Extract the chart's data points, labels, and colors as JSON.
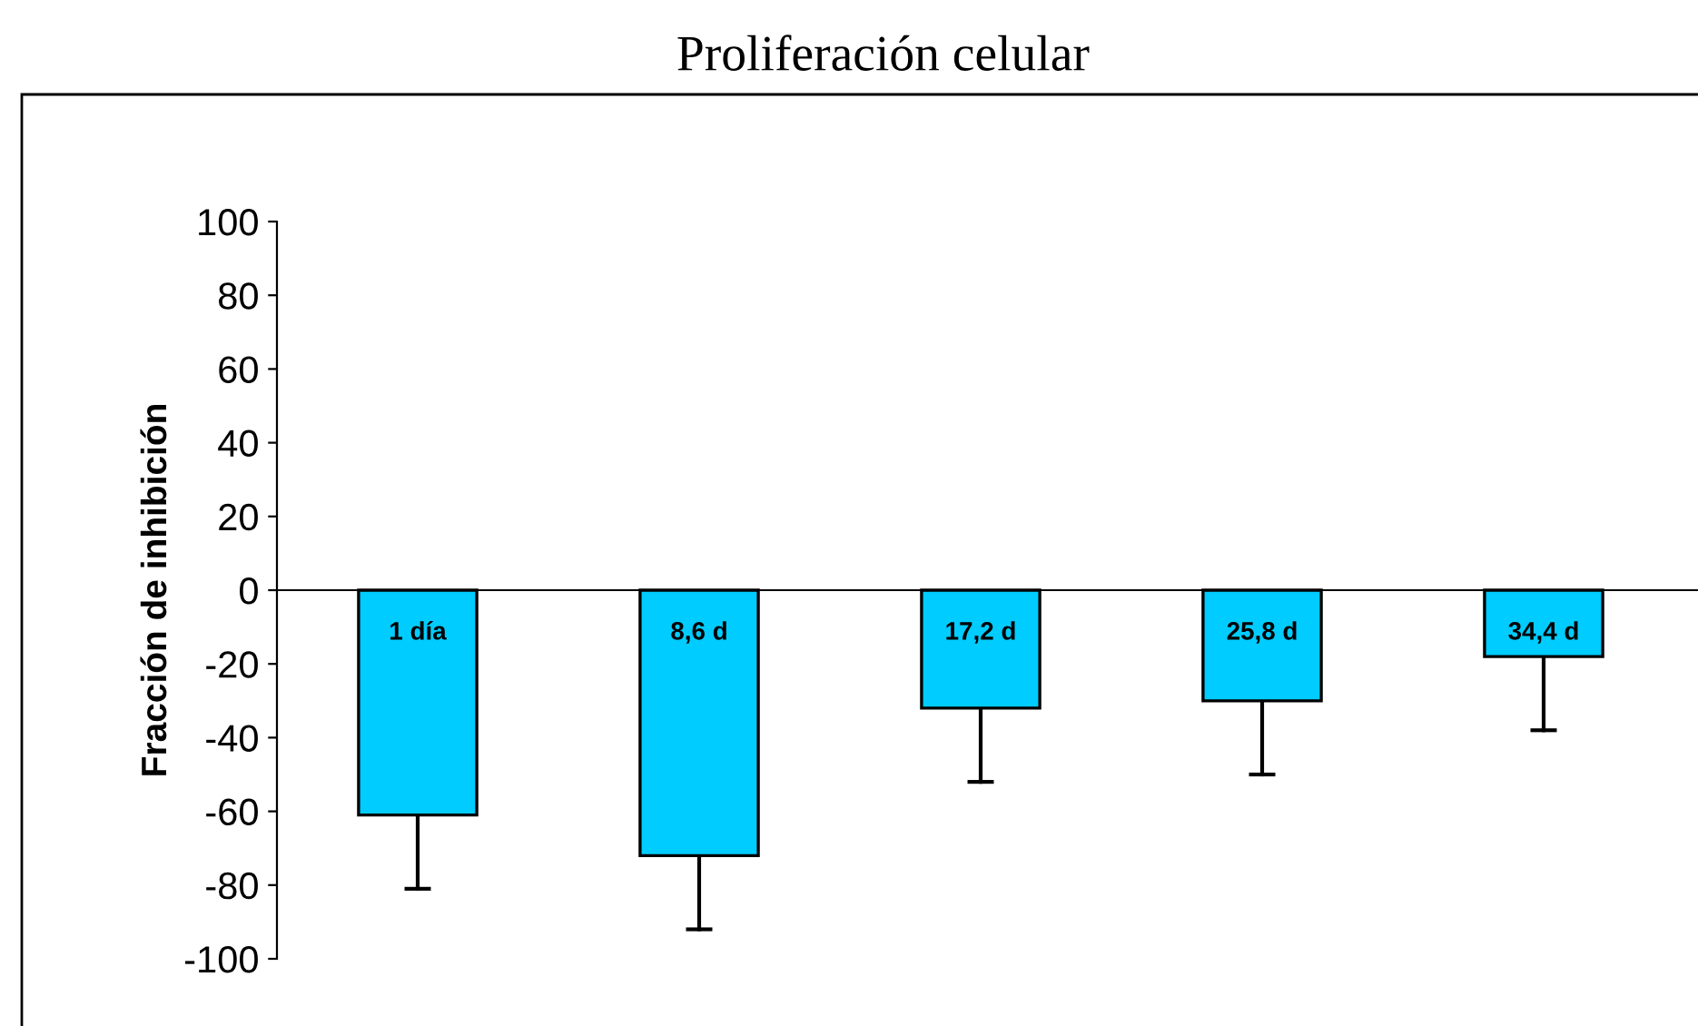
{
  "chart_data": {
    "type": "bar",
    "title": "Proliferación celular",
    "ylabel": "Fracción de inhibición",
    "categories": [
      "1 día",
      "8,6 d",
      "17,2 d",
      "25,8 d",
      "34,4 d"
    ],
    "values": [
      -61,
      -72,
      -32,
      -30,
      -18
    ],
    "errors": [
      [
        -81,
        -61
      ],
      [
        -92,
        -72
      ],
      [
        -52,
        -32
      ],
      [
        -50,
        -30
      ],
      [
        -38,
        -18
      ]
    ],
    "color": "#00ccff",
    "ylim": [
      -100,
      100
    ],
    "yticks": [
      -100,
      -80,
      -60,
      -40,
      -20,
      0,
      20,
      40,
      60,
      80,
      100
    ],
    "grid": false,
    "tick_labels": "y"
  }
}
